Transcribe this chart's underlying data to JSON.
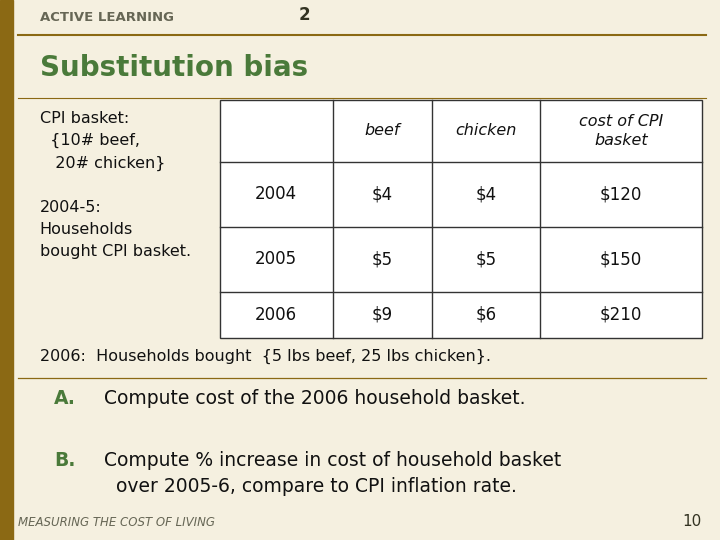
{
  "bg_color": "#f5f0e0",
  "left_bar_color": "#8B6914",
  "top_label_normal": "ACTIVE LEARNING ",
  "top_label_bold": "2",
  "title": "Substitution bias",
  "title_color": "#4a7a3a",
  "left_text_lines": [
    "CPI basket:",
    "  {10# beef,",
    "   20# chicken}",
    "",
    "2004-5:",
    "Households",
    "bought CPI basket."
  ],
  "table_headers": [
    "",
    "beef",
    "chicken",
    "cost of CPI\nbasket"
  ],
  "table_rows": [
    [
      "2004",
      "$4",
      "$4",
      "$120"
    ],
    [
      "2005",
      "$5",
      "$5",
      "$150"
    ],
    [
      "2006",
      "$9",
      "$6",
      "$210"
    ]
  ],
  "note_2006": "2006:  Households bought  {5 lbs beef, 25 lbs chicken}.",
  "question_a_label": "A.",
  "question_a_color": "#4a7a3a",
  "question_a_text": "Compute cost of the 2006 household basket.",
  "question_b_label": "B.",
  "question_b_color": "#4a7a3a",
  "question_b_text_line1": "Compute % increase in cost of household basket",
  "question_b_text_line2": "over 2005-6, compare to CPI inflation rate.",
  "footer_text": "MEASURING THE COST OF LIVING",
  "footer_page": "10",
  "divider_color": "#8B6914",
  "table_border_color": "#333333"
}
